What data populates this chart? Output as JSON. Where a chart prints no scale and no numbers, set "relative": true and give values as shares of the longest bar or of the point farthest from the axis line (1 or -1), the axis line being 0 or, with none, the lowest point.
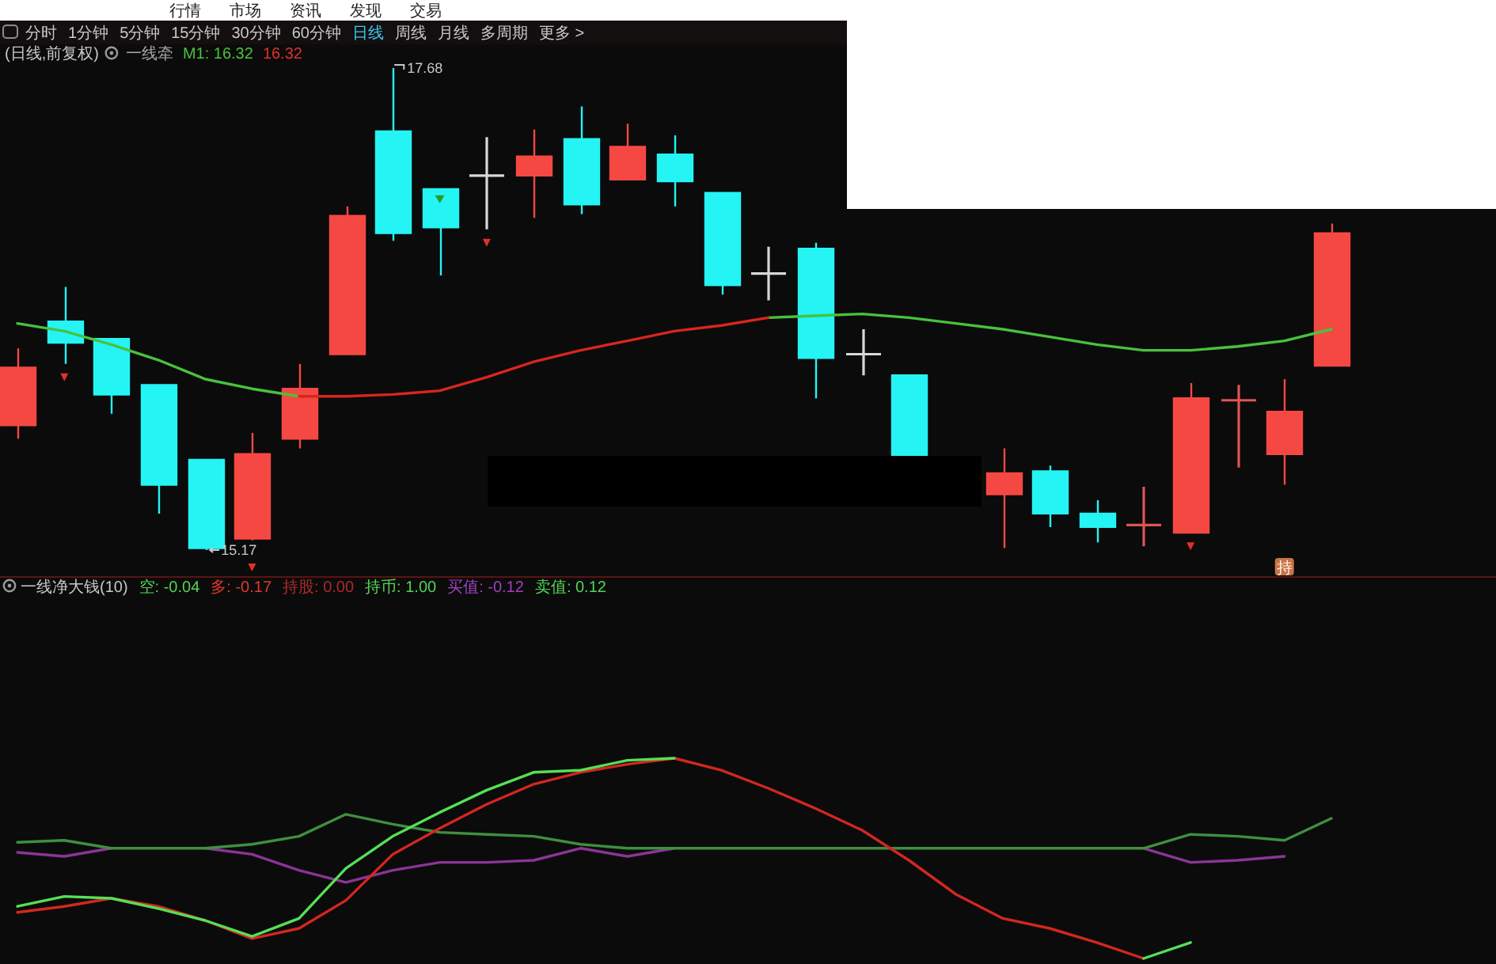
{
  "chart_data": [
    {
      "type": "candlestick",
      "title": "(日线,前复权)",
      "tick_labels": false,
      "categories": [
        null,
        null,
        null,
        null,
        null,
        null,
        null,
        null,
        null,
        null,
        null,
        null,
        null,
        null,
        null,
        null,
        null,
        null,
        null,
        null,
        null,
        null,
        null,
        null,
        null,
        null,
        null,
        null,
        null
      ],
      "ohlc": [
        [
          15.82,
          16.22,
          15.75,
          16.12
        ],
        [
          16.36,
          16.54,
          16.14,
          16.25
        ],
        [
          16.27,
          16.27,
          15.88,
          15.98
        ],
        [
          16.03,
          16.03,
          15.36,
          15.51
        ],
        [
          15.64,
          15.64,
          15.17,
          15.18
        ],
        [
          15.23,
          15.78,
          15.22,
          15.67
        ],
        [
          15.75,
          16.14,
          15.7,
          16.01
        ],
        [
          16.19,
          16.96,
          16.19,
          16.91
        ],
        [
          17.35,
          17.68,
          16.78,
          16.82
        ],
        [
          17.05,
          17.05,
          16.6,
          16.85
        ],
        [
          17.12,
          17.32,
          16.84,
          17.12
        ],
        [
          17.12,
          17.36,
          16.9,
          17.22
        ],
        [
          17.31,
          17.48,
          16.92,
          16.97
        ],
        [
          17.1,
          17.39,
          17.1,
          17.27
        ],
        [
          17.23,
          17.33,
          16.96,
          17.09
        ],
        [
          17.03,
          17.03,
          16.5,
          16.55
        ],
        [
          16.61,
          16.75,
          16.47,
          16.61
        ],
        [
          16.74,
          16.77,
          15.96,
          16.17
        ],
        [
          16.19,
          16.32,
          16.08,
          16.19
        ],
        [
          16.08,
          16.08,
          15.66,
          15.66
        ],
        null,
        [
          15.46,
          15.7,
          15.18,
          15.57
        ],
        [
          15.58,
          15.61,
          15.29,
          15.36
        ],
        [
          15.36,
          15.43,
          15.21,
          15.29
        ],
        [
          15.3,
          15.5,
          15.19,
          15.3
        ],
        [
          15.26,
          16.04,
          15.26,
          15.96
        ],
        [
          15.95,
          16.03,
          15.6,
          15.95
        ],
        [
          15.67,
          16.06,
          15.51,
          15.89
        ],
        [
          16.13,
          16.87,
          16.13,
          16.82
        ]
      ],
      "colors": [
        "#f64843",
        "#25f4f4",
        "#25f4f4",
        "#25f4f4",
        "#25f4f4",
        "#f64843",
        "#f64843",
        "#f64843",
        "#25f4f4",
        "#25f4f4",
        "#d8d8d8",
        "#f64843",
        "#25f4f4",
        "#f64843",
        "#25f4f4",
        "#25f4f4",
        "#d8d8d8",
        "#25f4f4",
        "#d8d8d8",
        "#25f4f4",
        null,
        "#f64843",
        "#25f4f4",
        "#25f4f4",
        "#e05454",
        "#f64843",
        "#e05454",
        "#f64843",
        "#f64843"
      ],
      "series": [
        {
          "type": "line",
          "color": "#48c23c",
          "values": [
            16.35,
            16.31,
            16.24,
            16.16,
            16.06,
            16.01,
            15.97,
            null,
            null,
            null,
            null,
            null,
            null,
            null,
            null,
            null,
            16.38,
            16.39,
            16.4,
            16.38,
            16.35,
            16.32,
            16.28,
            16.24,
            16.21,
            16.21,
            16.23,
            16.26,
            16.32
          ]
        },
        {
          "type": "line",
          "color": "#d8261e",
          "values": [
            null,
            null,
            null,
            null,
            null,
            null,
            15.97,
            15.97,
            15.98,
            16.0,
            16.07,
            16.15,
            16.21,
            16.26,
            16.31,
            16.34,
            16.38,
            null,
            null,
            null,
            null,
            null,
            null,
            null,
            null,
            null,
            null,
            null,
            null
          ]
        }
      ],
      "annotations": [
        "行情",
        "市场",
        "资讯",
        "发现",
        "交易",
        "分时",
        "1分钟",
        "5分钟",
        "15分钟",
        "30分钟",
        "60分钟",
        "日线",
        "周线",
        "月线",
        "多周期",
        "更多 >",
        "一线牵",
        "M1: 16.32",
        "16.32",
        "17.68",
        "15.17",
        "持"
      ]
    },
    {
      "type": "line",
      "relative": true,
      "title": "一线净大钱(10)",
      "categories": [
        null,
        null,
        null,
        null,
        null,
        null,
        null,
        null,
        null,
        null,
        null,
        null,
        null,
        null,
        null,
        null,
        null,
        null,
        null,
        null,
        null,
        null,
        null,
        null,
        null,
        null,
        null,
        null,
        null
      ],
      "series": [
        {
          "type": "line",
          "color": "#8a3596",
          "values": [
            0.53,
            0.51,
            0.55,
            null,
            0.55,
            0.52,
            0.44,
            0.38,
            0.44,
            0.48,
            0.48,
            0.49,
            0.55,
            0.51,
            0.55,
            null,
            null,
            null,
            null,
            null,
            null,
            null,
            null,
            null,
            0.55,
            0.48,
            0.49,
            0.51,
            null
          ]
        },
        {
          "type": "line",
          "color": "#3f8f3f",
          "values": [
            0.58,
            0.59,
            0.55,
            0.55,
            0.55,
            0.57,
            0.61,
            0.72,
            0.67,
            0.63,
            0.62,
            0.61,
            0.57,
            0.55,
            0.55,
            0.55,
            0.55,
            0.55,
            0.55,
            0.55,
            0.55,
            0.55,
            0.55,
            0.55,
            0.55,
            0.62,
            0.61,
            0.59,
            0.7
          ]
        },
        {
          "type": "line",
          "color": "#d2271f",
          "values": [
            0.23,
            0.26,
            0.3,
            0.26,
            0.19,
            0.1,
            0.15,
            0.29,
            0.52,
            0.65,
            0.77,
            0.87,
            0.93,
            0.97,
            1,
            0.94,
            0.85,
            0.75,
            0.64,
            0.49,
            0.32,
            0.2,
            0.15,
            0.08,
            0,
            null,
            null,
            null,
            null
          ]
        },
        {
          "type": "line",
          "color": "#55e055",
          "values": [
            0.26,
            0.31,
            0.3,
            0.25,
            0.19,
            0.11,
            0.2,
            0.45,
            0.61,
            0.73,
            0.84,
            0.93,
            0.94,
            0.99,
            1,
            null,
            null,
            null,
            null,
            null,
            null,
            null,
            null,
            null,
            0,
            0.08,
            null,
            null,
            null
          ]
        }
      ],
      "annotations": [
        "空: -0.04",
        "多: -0.17",
        "持股: 0.00",
        "持币: 1.00",
        "买值: -0.12",
        "卖值: 0.12"
      ]
    }
  ]
}
